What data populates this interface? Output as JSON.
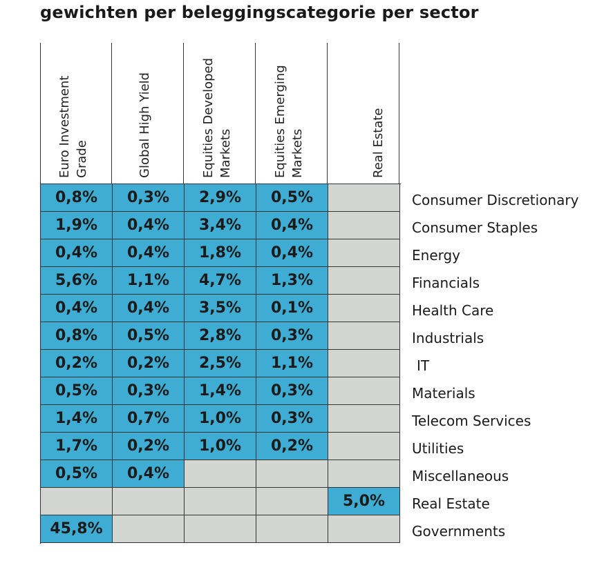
{
  "title": "gewichten per beleggingscategorie per sector",
  "chart_data": {
    "type": "table",
    "columns": [
      [
        "Euro Investment",
        "Grade"
      ],
      [
        "Global High Yield"
      ],
      [
        "Equities Developed",
        "Markets"
      ],
      [
        "Equities Emerging",
        "Markets"
      ],
      [
        "Real Estate"
      ]
    ],
    "rows": [
      "Consumer Discretionary",
      "Consumer Staples",
      "Energy",
      "Financials",
      "Health Care",
      "Industrials",
      "IT",
      "Materials",
      "Telecom Services",
      "Utilities",
      "Miscellaneous",
      "Real Estate",
      "Governments"
    ],
    "values": [
      [
        "0,8%",
        "0,3%",
        "2,9%",
        "0,5%",
        ""
      ],
      [
        "1,9%",
        "0,4%",
        "3,4%",
        "0,4%",
        ""
      ],
      [
        "0,4%",
        "0,4%",
        "1,8%",
        "0,4%",
        ""
      ],
      [
        "5,6%",
        "1,1%",
        "4,7%",
        "1,3%",
        ""
      ],
      [
        "0,4%",
        "0,4%",
        "3,5%",
        "0,1%",
        ""
      ],
      [
        "0,8%",
        "0,5%",
        "2,8%",
        "0,3%",
        ""
      ],
      [
        "0,2%",
        "0,2%",
        "2,5%",
        "1,1%",
        ""
      ],
      [
        "0,5%",
        "0,3%",
        "1,4%",
        "0,3%",
        ""
      ],
      [
        "1,4%",
        "0,7%",
        "1,0%",
        "0,3%",
        ""
      ],
      [
        "1,7%",
        "0,2%",
        "1,0%",
        "0,2%",
        ""
      ],
      [
        "0,5%",
        "0,4%",
        "",
        "",
        ""
      ],
      [
        "",
        "",
        "",
        "",
        "5,0%"
      ],
      [
        "45,8%",
        "",
        "",
        "",
        ""
      ]
    ],
    "colors": {
      "filled": "#3fadd3",
      "empty": "#d3d6d0",
      "grid": "#333333"
    }
  }
}
